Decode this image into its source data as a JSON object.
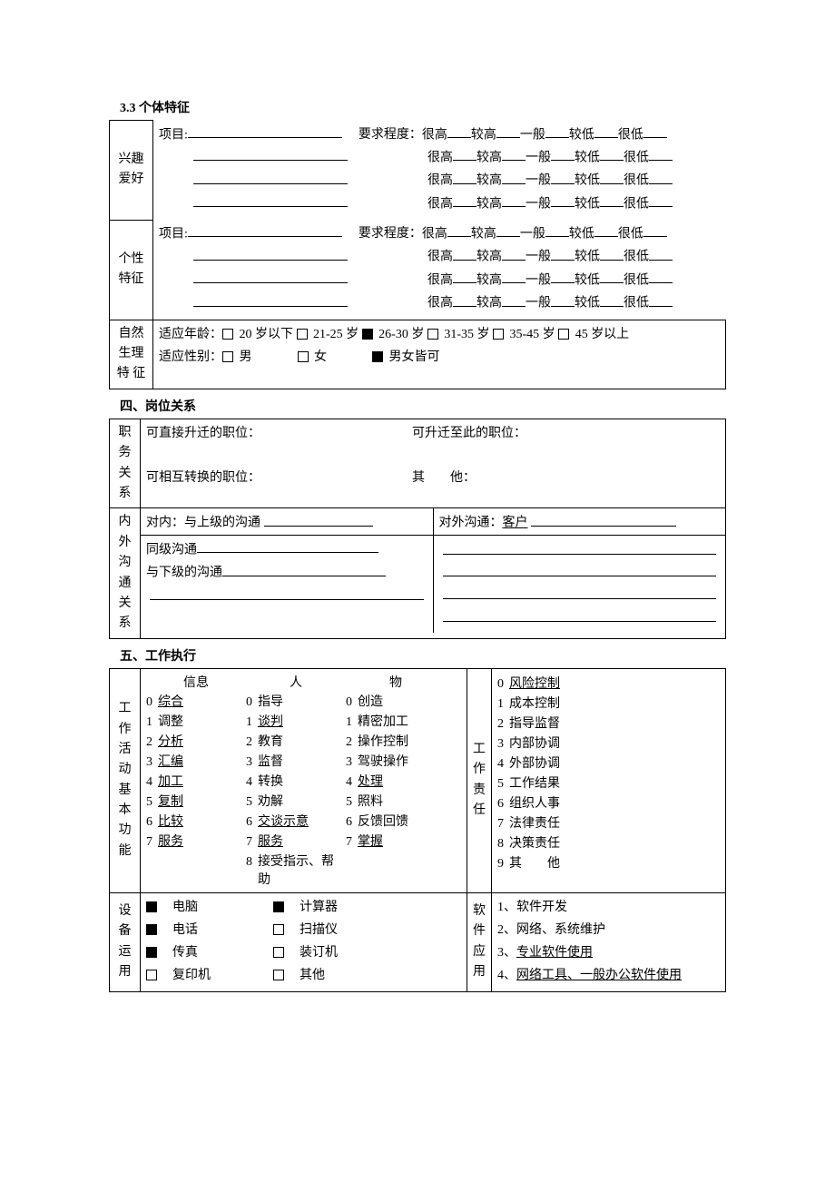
{
  "section3_3": {
    "title": "3.3  个体特征",
    "interest_label": "兴趣爱好",
    "personality_label": "个性特征",
    "item_label": "项目:",
    "req_label": "要求程度：",
    "ratings": [
      "很高",
      "较高",
      "一般",
      "较低",
      "很低"
    ],
    "physio_label": "自然生理特   征",
    "age_label": "适应年龄：",
    "age_opts": [
      "20 岁以下",
      "21-25 岁",
      "26-30 岁",
      "31-35 岁",
      "35-45 岁",
      "45 岁以上"
    ],
    "age_checked": [
      false,
      false,
      true,
      false,
      false,
      false
    ],
    "sex_label": "适应性别：",
    "sex_opts": [
      "男",
      "女",
      "男女皆可"
    ],
    "sex_checked": [
      false,
      false,
      true
    ]
  },
  "section4": {
    "title": "四、岗位关系",
    "job_rel_label": "职务关系",
    "promote_label": "可直接升迁的职位：",
    "promoted_to_label": "可升迁至此的职位：",
    "swap_label": "可相互转换的职位：",
    "other_label": "其　　他：",
    "comm_label": "内外沟通关系",
    "internal_sup": "对内：与上级的沟通",
    "external": "对外沟通：",
    "external_val": "客户",
    "peer": "同级沟通",
    "sub": "与下级的沟通"
  },
  "section5": {
    "title": "五、工作执行",
    "activity_label": "工作活动基本功能",
    "col_info": "信息",
    "col_people": "人",
    "col_things": "物",
    "info": [
      "综合",
      "调整",
      "分析",
      "汇编",
      "加工",
      "复制",
      "比较",
      "服务"
    ],
    "info_u": [
      true,
      false,
      true,
      true,
      true,
      true,
      true,
      true
    ],
    "people": [
      "指导",
      "谈判",
      "教育",
      "监督",
      "转换",
      "劝解",
      "交谈示意",
      "服务",
      "接受指示、帮助"
    ],
    "people_u": [
      false,
      true,
      false,
      false,
      false,
      false,
      true,
      true,
      false
    ],
    "things": [
      "创造",
      "精密加工",
      "操作控制",
      "驾驶操作",
      "处理",
      "照料",
      "反馈回馈",
      "掌握"
    ],
    "things_u": [
      false,
      false,
      false,
      false,
      true,
      false,
      false,
      true
    ],
    "duty_label": "工作责任",
    "duties": [
      "风险控制",
      "成本控制",
      "指导监督",
      "内部协调",
      "外部协调",
      "工作结果",
      "组织人事",
      "法律责任",
      "决策责任",
      "其　　他"
    ],
    "duties_u": [
      true,
      false,
      false,
      false,
      false,
      false,
      false,
      false,
      false,
      false
    ],
    "equip_label": "设备运用",
    "equip": [
      "电脑",
      "电话",
      "传真",
      "复印机",
      "计算器",
      "扫描仪",
      "装订机",
      "其他"
    ],
    "equip_checked": [
      true,
      true,
      true,
      false,
      true,
      false,
      false,
      false
    ],
    "soft_label": "软件应用",
    "soft": [
      "软件开发",
      "网络、系统维护",
      "专业软件使用",
      "网络工具、一般办公软件使用"
    ],
    "soft_u": [
      false,
      false,
      true,
      true
    ]
  }
}
